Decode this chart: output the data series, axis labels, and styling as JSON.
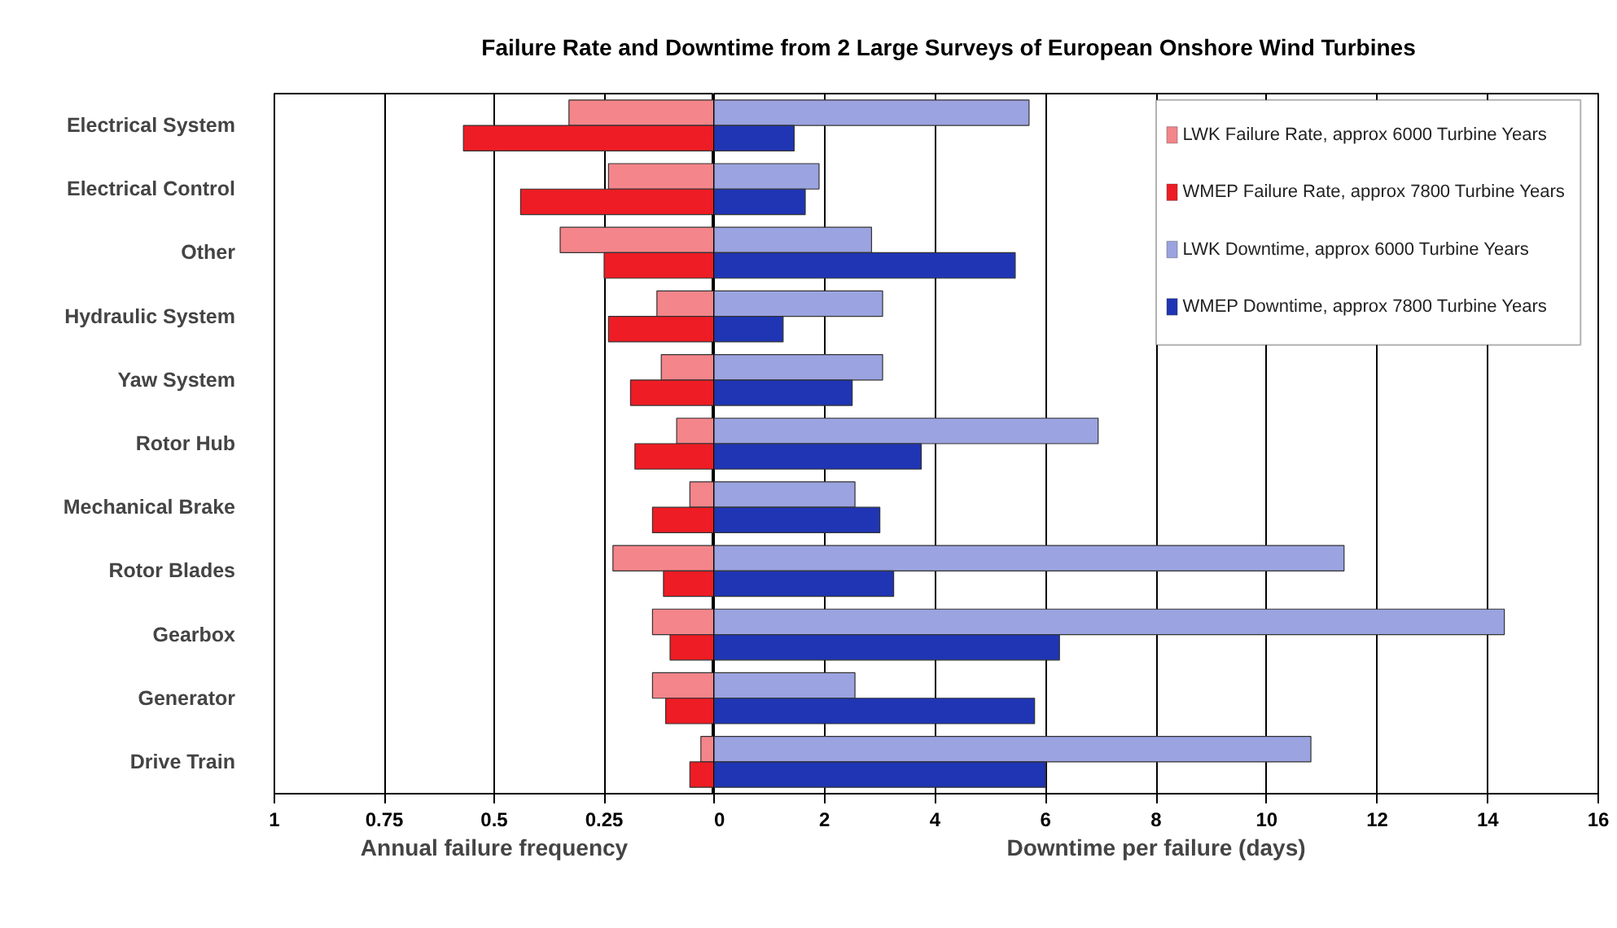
{
  "chart_data": [
    {
      "type": "bar",
      "orientation": "horizontal",
      "title": "Failure Rate and Downtime from  2 Large Surveys of European Onshore Wind Turbines",
      "xlabel": "Annual failure frequency",
      "categories": [
        "Electrical System",
        "Electrical Control",
        "Other",
        "Hydraulic System",
        "Yaw System",
        "Rotor Hub",
        "Mechanical Brake",
        "Rotor Blades",
        "Gearbox",
        "Generator",
        "Drive Train"
      ],
      "series": [
        {
          "name": "LWK Failure Rate, approx 6000 Turbine Years",
          "color": "#f4858a",
          "values": [
            0.33,
            0.24,
            0.35,
            0.13,
            0.12,
            0.085,
            0.055,
            0.23,
            0.14,
            0.14,
            0.03
          ]
        },
        {
          "name": "WMEP Failure Rate, approx 7800 Turbine Years",
          "color": "#ee1c24",
          "values": [
            0.57,
            0.44,
            0.25,
            0.24,
            0.19,
            0.18,
            0.14,
            0.115,
            0.1,
            0.11,
            0.055
          ]
        }
      ],
      "xlim": [
        1,
        0
      ],
      "xticks": [
        1,
        0.75,
        0.5,
        0.25
      ],
      "grid": "x",
      "legend": "top right"
    },
    {
      "type": "bar",
      "orientation": "horizontal",
      "xlabel": "Downtime per failure (days)",
      "series": [
        {
          "name": "LWK Downtime, approx 6000 Turbine Years",
          "color": "#9ba3e0",
          "values": [
            5.7,
            1.9,
            2.85,
            3.05,
            3.05,
            6.95,
            2.55,
            11.4,
            14.3,
            2.55,
            10.8
          ]
        },
        {
          "name": "WMEP Downtime, approx 7800 Turbine Years",
          "color": "#1f35b4",
          "values": [
            1.45,
            1.65,
            5.45,
            1.25,
            2.5,
            3.75,
            3.0,
            3.25,
            6.25,
            5.8,
            6.0
          ]
        }
      ],
      "xlim": [
        0,
        16
      ],
      "xticks": [
        0,
        2,
        4,
        6,
        8,
        10,
        12,
        14,
        16
      ],
      "grid": "x",
      "legend": "top right",
      "tick_labels": "x"
    }
  ]
}
